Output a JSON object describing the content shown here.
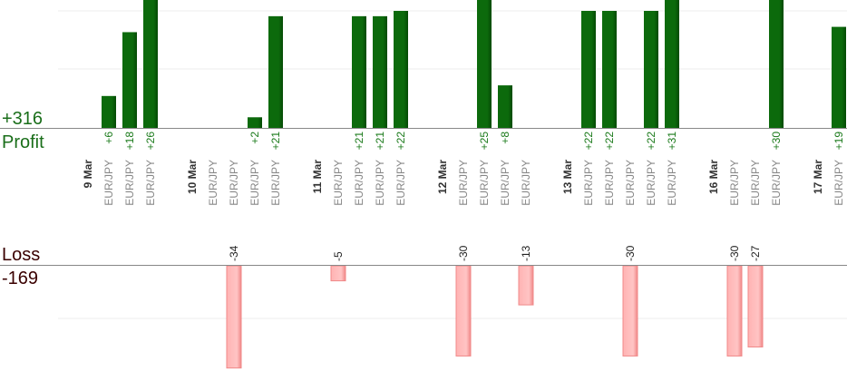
{
  "labels": {
    "profit_total": "+316",
    "profit": "Profit",
    "loss": "Loss",
    "loss_total": "-169"
  },
  "colors": {
    "profit_bar": "#0c6a0c",
    "profit_text": "#1a7a1a",
    "loss_bar": "#ffb3b3",
    "loss_bar_edge": "#f08888",
    "axis": "#888888",
    "grid": "#eeeeee",
    "label_profit": "#1a6e1a",
    "label_loss": "#3a0000"
  },
  "chart_data": {
    "type": "bar",
    "profit_axis_max": 22,
    "loss_axis_max": 35,
    "columns": [
      {
        "kind": "date",
        "label": "9 Mar"
      },
      {
        "kind": "trade",
        "label": "EUR/JPY",
        "value": 6,
        "value_label": "+6"
      },
      {
        "kind": "trade",
        "label": "EUR/JPY",
        "value": 18,
        "value_label": "+18"
      },
      {
        "kind": "trade",
        "label": "EUR/JPY",
        "value": 26,
        "value_label": "+26"
      },
      {
        "kind": "gap"
      },
      {
        "kind": "date",
        "label": "10 Mar"
      },
      {
        "kind": "trade",
        "label": "EUR/JPY",
        "value": 0,
        "value_label": ""
      },
      {
        "kind": "trade",
        "label": "EUR/JPY",
        "value": -34,
        "value_label": "-34"
      },
      {
        "kind": "trade",
        "label": "EUR/JPY",
        "value": 2,
        "value_label": "+2"
      },
      {
        "kind": "trade",
        "label": "EUR/JPY",
        "value": 21,
        "value_label": "+21"
      },
      {
        "kind": "gap"
      },
      {
        "kind": "date",
        "label": "11 Mar"
      },
      {
        "kind": "trade",
        "label": "EUR/JPY",
        "value": -5,
        "value_label": "-5"
      },
      {
        "kind": "trade",
        "label": "EUR/JPY",
        "value": 21,
        "value_label": "+21"
      },
      {
        "kind": "trade",
        "label": "EUR/JPY",
        "value": 21,
        "value_label": "+21"
      },
      {
        "kind": "trade",
        "label": "EUR/JPY",
        "value": 22,
        "value_label": "+22"
      },
      {
        "kind": "gap"
      },
      {
        "kind": "date",
        "label": "12 Mar"
      },
      {
        "kind": "trade",
        "label": "EUR/JPY",
        "value": -30,
        "value_label": "-30"
      },
      {
        "kind": "trade",
        "label": "EUR/JPY",
        "value": 25,
        "value_label": "+25"
      },
      {
        "kind": "trade",
        "label": "EUR/JPY",
        "value": 8,
        "value_label": "+8"
      },
      {
        "kind": "trade",
        "label": "EUR/JPY",
        "value": -13,
        "value_label": "-13"
      },
      {
        "kind": "gap"
      },
      {
        "kind": "date",
        "label": "13 Mar"
      },
      {
        "kind": "trade",
        "label": "EUR/JPY",
        "value": 22,
        "value_label": "+22"
      },
      {
        "kind": "trade",
        "label": "EUR/JPY",
        "value": 22,
        "value_label": "+22"
      },
      {
        "kind": "trade",
        "label": "EUR/JPY",
        "value": -30,
        "value_label": "-30"
      },
      {
        "kind": "trade",
        "label": "EUR/JPY",
        "value": 22,
        "value_label": "+22"
      },
      {
        "kind": "trade",
        "label": "EUR/JPY",
        "value": 31,
        "value_label": "+31"
      },
      {
        "kind": "gap"
      },
      {
        "kind": "date",
        "label": "16 Mar"
      },
      {
        "kind": "trade",
        "label": "EUR/JPY",
        "value": -30,
        "value_label": "-30"
      },
      {
        "kind": "trade",
        "label": "EUR/JPY",
        "value": -27,
        "value_label": "-27"
      },
      {
        "kind": "trade",
        "label": "EUR/JPY",
        "value": 30,
        "value_label": "+30"
      },
      {
        "kind": "gap"
      },
      {
        "kind": "date",
        "label": "17 Mar"
      },
      {
        "kind": "trade",
        "label": "EUR/JPY",
        "value": 19,
        "value_label": "+19"
      }
    ]
  }
}
